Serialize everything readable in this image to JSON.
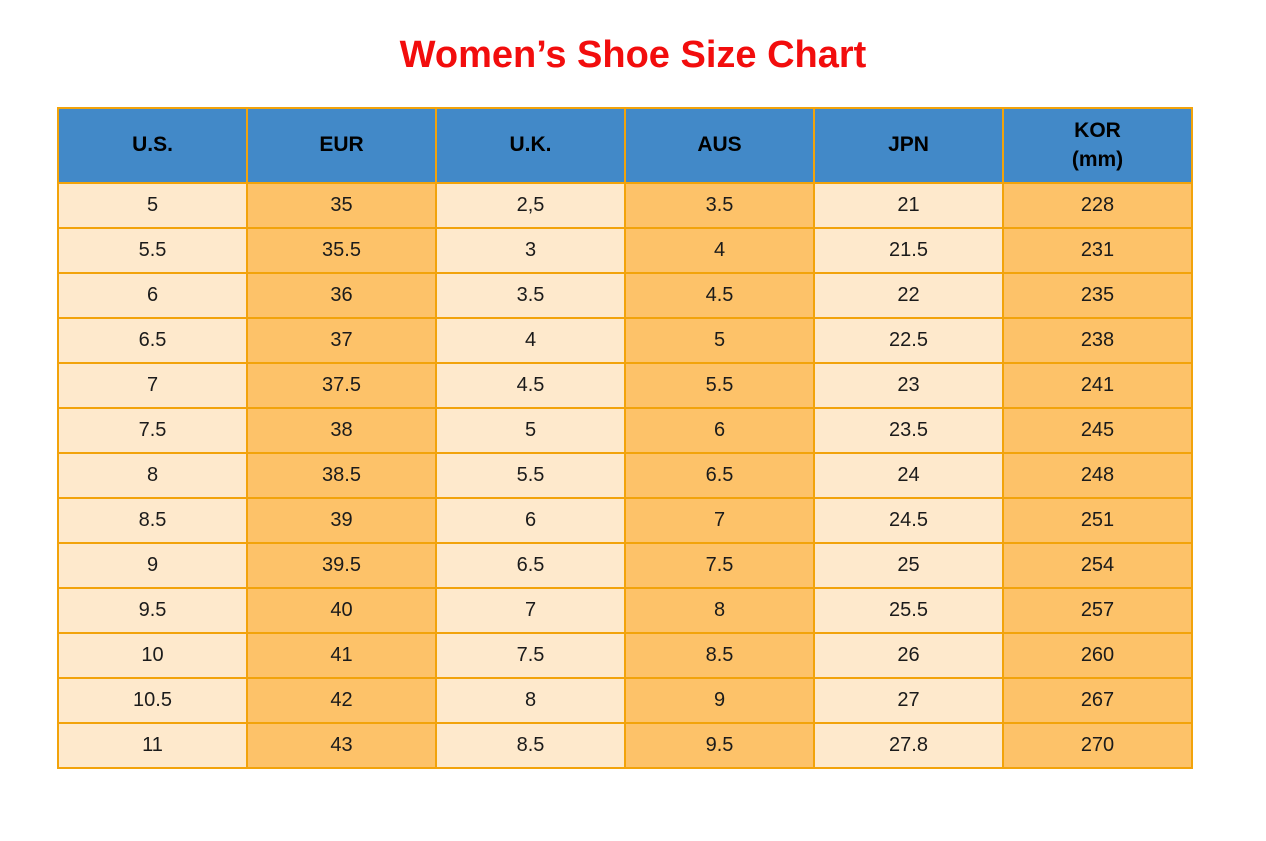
{
  "page": {
    "title": "Women’s Shoe Size Chart"
  },
  "colors": {
    "title_red": "#F20D0D",
    "header_blue": "#4289C8",
    "col_cream": "#FEE9CC",
    "col_orange": "#FDC269",
    "grid_orange": "#F2A30B",
    "text_dark": "#1B1B1B"
  },
  "table": {
    "headers": [
      {
        "label": "U.S.",
        "sublabel": ""
      },
      {
        "label": "EUR",
        "sublabel": ""
      },
      {
        "label": "U.K.",
        "sublabel": ""
      },
      {
        "label": "AUS",
        "sublabel": ""
      },
      {
        "label": "JPN",
        "sublabel": ""
      },
      {
        "label": "KOR",
        "sublabel": "(mm)"
      }
    ],
    "rows": [
      [
        "5",
        "35",
        "2,5",
        "3.5",
        "21",
        "228"
      ],
      [
        "5.5",
        "35.5",
        "3",
        "4",
        "21.5",
        "231"
      ],
      [
        "6",
        "36",
        "3.5",
        "4.5",
        "22",
        "235"
      ],
      [
        "6.5",
        "37",
        "4",
        "5",
        "22.5",
        "238"
      ],
      [
        "7",
        "37.5",
        "4.5",
        "5.5",
        "23",
        "241"
      ],
      [
        "7.5",
        "38",
        "5",
        "6",
        "23.5",
        "245"
      ],
      [
        "8",
        "38.5",
        "5.5",
        "6.5",
        "24",
        "248"
      ],
      [
        "8.5",
        "39",
        "6",
        "7",
        "24.5",
        "251"
      ],
      [
        "9",
        "39.5",
        "6.5",
        "7.5",
        "25",
        "254"
      ],
      [
        "9.5",
        "40",
        "7",
        "8",
        "25.5",
        "257"
      ],
      [
        "10",
        "41",
        "7.5",
        "8.5",
        "26",
        "260"
      ],
      [
        "10.5",
        "42",
        "8",
        "9",
        "27",
        "267"
      ],
      [
        "11",
        "43",
        "8.5",
        "9.5",
        "27.8",
        "270"
      ]
    ]
  },
  "chart_data": {
    "type": "table",
    "title": "Women’s Shoe Size Chart",
    "columns": [
      "U.S.",
      "EUR",
      "U.K.",
      "AUS",
      "JPN",
      "KOR (mm)"
    ],
    "rows": [
      [
        "5",
        "35",
        "2,5",
        "3.5",
        "21",
        "228"
      ],
      [
        "5.5",
        "35.5",
        "3",
        "4",
        "21.5",
        "231"
      ],
      [
        "6",
        "36",
        "3.5",
        "4.5",
        "22",
        "235"
      ],
      [
        "6.5",
        "37",
        "4",
        "5",
        "22.5",
        "238"
      ],
      [
        "7",
        "37.5",
        "4.5",
        "5.5",
        "23",
        "241"
      ],
      [
        "7.5",
        "38",
        "5",
        "6",
        "23.5",
        "245"
      ],
      [
        "8",
        "38.5",
        "5.5",
        "6.5",
        "24",
        "248"
      ],
      [
        "8.5",
        "39",
        "6",
        "7",
        "24.5",
        "251"
      ],
      [
        "9",
        "39.5",
        "6.5",
        "7.5",
        "25",
        "254"
      ],
      [
        "9.5",
        "40",
        "7",
        "8",
        "25.5",
        "257"
      ],
      [
        "10",
        "41",
        "7.5",
        "8.5",
        "26",
        "260"
      ],
      [
        "10.5",
        "42",
        "8",
        "9",
        "27",
        "267"
      ],
      [
        "11",
        "43",
        "8.5",
        "9.5",
        "27.8",
        "270"
      ]
    ],
    "layout": {
      "column_shading_alternates": true,
      "header_background": "#4289C8",
      "grid": true
    }
  }
}
